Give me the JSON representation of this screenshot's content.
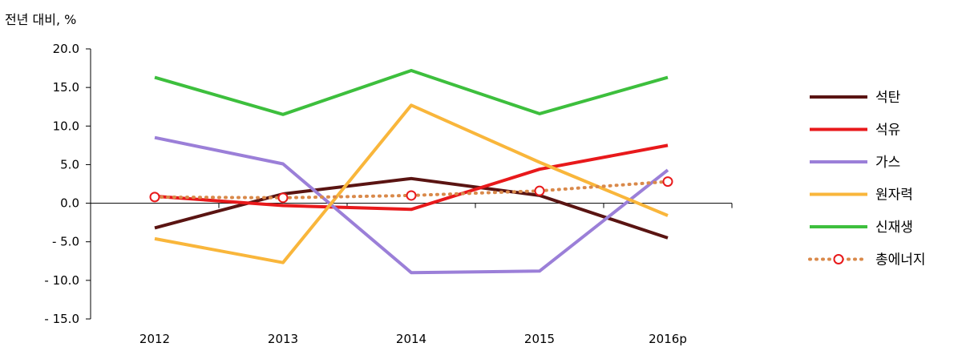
{
  "chart_data": {
    "type": "line",
    "unit_label": "전년 대비, %",
    "categories": [
      "2012",
      "2013",
      "2014",
      "2015",
      "2016p"
    ],
    "ylim": [
      -15,
      20
    ],
    "yticks": [
      20,
      15,
      10,
      5,
      0,
      -5,
      -10,
      -15
    ],
    "ytick_labels": [
      "20.0",
      "15.0",
      "10.0",
      "5.0",
      "0.0",
      "- 5.0",
      "- 10.0",
      "- 15.0"
    ],
    "legend_position": "right",
    "series": [
      {
        "name": "석탄",
        "color": "#5a1412",
        "dash": "solid",
        "marker": "none",
        "values": [
          -3.2,
          1.2,
          3.2,
          1.0,
          -4.5
        ]
      },
      {
        "name": "석유",
        "color": "#e8191b",
        "dash": "solid",
        "marker": "none",
        "values": [
          0.9,
          -0.3,
          -0.8,
          4.4,
          7.5
        ]
      },
      {
        "name": "가스",
        "color": "#9b7fd8",
        "dash": "solid",
        "marker": "none",
        "values": [
          8.5,
          5.1,
          -9.0,
          -8.8,
          4.3
        ]
      },
      {
        "name": "원자력",
        "color": "#f9b63b",
        "dash": "solid",
        "marker": "none",
        "values": [
          -4.6,
          -7.7,
          12.7,
          5.3,
          -1.6
        ]
      },
      {
        "name": "신재생",
        "color": "#3dbf3d",
        "dash": "solid",
        "marker": "none",
        "values": [
          16.3,
          11.5,
          17.2,
          11.6,
          16.3
        ]
      },
      {
        "name": "총에너지",
        "color": "#d9894a",
        "dash": "dotted",
        "marker": "circle",
        "marker_color": "#e8191b",
        "values": [
          0.8,
          0.7,
          1.0,
          1.6,
          2.8
        ]
      }
    ]
  }
}
